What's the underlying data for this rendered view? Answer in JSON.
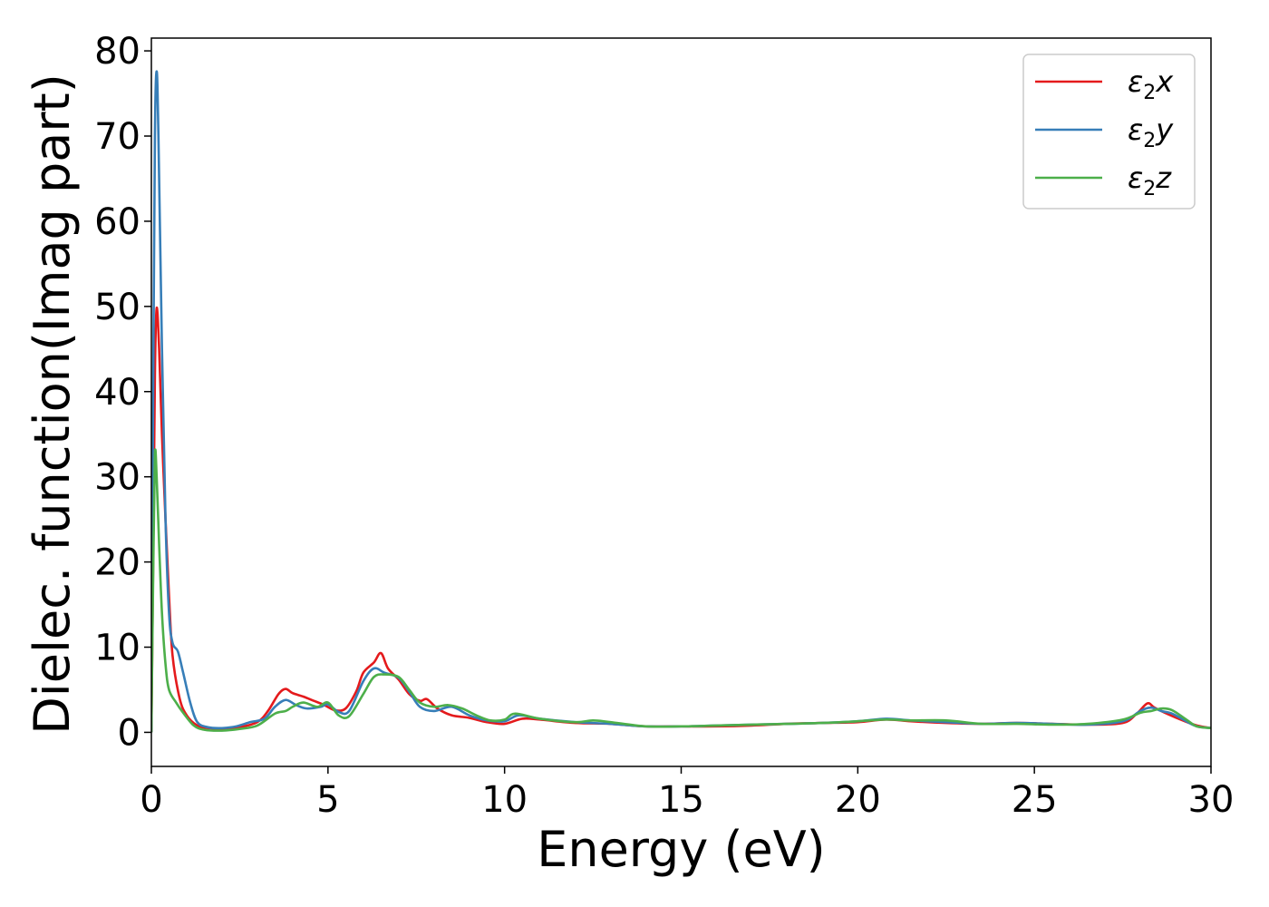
{
  "chart_data": {
    "type": "line",
    "title": "",
    "xlabel": "Energy (eV)",
    "ylabel": "Dielec. function(Imag part)",
    "xlim": [
      0,
      30
    ],
    "ylim": [
      -4,
      81.5
    ],
    "xticks": [
      0,
      5,
      10,
      15,
      20,
      25,
      30
    ],
    "yticks": [
      0,
      10,
      20,
      30,
      40,
      50,
      60,
      70,
      80
    ],
    "grid": false,
    "legend_position": "top-right",
    "series": [
      {
        "name": "ε2x",
        "legend_base": "ε",
        "legend_sub": "2",
        "legend_suffix": "x",
        "color": "#e41a1c",
        "points": [
          [
            0,
            0
          ],
          [
            0.05,
            20
          ],
          [
            0.1,
            42
          ],
          [
            0.15,
            49.8
          ],
          [
            0.22,
            45
          ],
          [
            0.3,
            35
          ],
          [
            0.4,
            25
          ],
          [
            0.5,
            16
          ],
          [
            0.6,
            9
          ],
          [
            0.8,
            4
          ],
          [
            1.0,
            2
          ],
          [
            1.3,
            0.8
          ],
          [
            1.6,
            0.5
          ],
          [
            2.0,
            0.4
          ],
          [
            2.5,
            0.6
          ],
          [
            3.0,
            1.2
          ],
          [
            3.3,
            2.5
          ],
          [
            3.6,
            4.5
          ],
          [
            3.8,
            5.1
          ],
          [
            4.0,
            4.6
          ],
          [
            4.3,
            4.2
          ],
          [
            4.6,
            3.7
          ],
          [
            4.9,
            3.2
          ],
          [
            5.2,
            2.6
          ],
          [
            5.5,
            2.8
          ],
          [
            5.8,
            4.8
          ],
          [
            6.0,
            7.0
          ],
          [
            6.3,
            8.2
          ],
          [
            6.5,
            9.3
          ],
          [
            6.7,
            7.5
          ],
          [
            7.0,
            6.2
          ],
          [
            7.3,
            4.5
          ],
          [
            7.6,
            3.7
          ],
          [
            7.8,
            3.9
          ],
          [
            8.1,
            2.8
          ],
          [
            8.5,
            2.0
          ],
          [
            9.0,
            1.7
          ],
          [
            9.5,
            1.2
          ],
          [
            10.0,
            1.0
          ],
          [
            10.5,
            1.6
          ],
          [
            11.0,
            1.5
          ],
          [
            12.0,
            1.1
          ],
          [
            13.0,
            1.0
          ],
          [
            14.0,
            0.7
          ],
          [
            15.0,
            0.7
          ],
          [
            16.0,
            0.7
          ],
          [
            17.0,
            0.8
          ],
          [
            18.0,
            1.0
          ],
          [
            19.0,
            1.1
          ],
          [
            20.0,
            1.2
          ],
          [
            20.8,
            1.5
          ],
          [
            21.5,
            1.3
          ],
          [
            22.5,
            1.1
          ],
          [
            23.5,
            1.0
          ],
          [
            24.5,
            1.1
          ],
          [
            25.5,
            1.0
          ],
          [
            26.5,
            0.9
          ],
          [
            27.5,
            1.1
          ],
          [
            27.9,
            2.2
          ],
          [
            28.2,
            3.4
          ],
          [
            28.4,
            2.9
          ],
          [
            28.8,
            2.1
          ],
          [
            29.2,
            1.4
          ],
          [
            29.6,
            0.8
          ],
          [
            30.0,
            0.5
          ]
        ]
      },
      {
        "name": "ε2y",
        "legend_base": "ε",
        "legend_sub": "2",
        "legend_suffix": "y",
        "color": "#377eb8",
        "points": [
          [
            0,
            0
          ],
          [
            0.05,
            40
          ],
          [
            0.1,
            70
          ],
          [
            0.15,
            77.6
          ],
          [
            0.2,
            70
          ],
          [
            0.3,
            45
          ],
          [
            0.4,
            25
          ],
          [
            0.5,
            14
          ],
          [
            0.6,
            10.5
          ],
          [
            0.75,
            9.5
          ],
          [
            0.9,
            7
          ],
          [
            1.1,
            3.5
          ],
          [
            1.3,
            1.2
          ],
          [
            1.6,
            0.6
          ],
          [
            2.0,
            0.5
          ],
          [
            2.4,
            0.7
          ],
          [
            2.8,
            1.2
          ],
          [
            3.2,
            1.6
          ],
          [
            3.5,
            3.0
          ],
          [
            3.8,
            3.8
          ],
          [
            4.1,
            3.2
          ],
          [
            4.4,
            2.8
          ],
          [
            4.8,
            3.0
          ],
          [
            5.0,
            3.3
          ],
          [
            5.3,
            2.4
          ],
          [
            5.6,
            2.5
          ],
          [
            6.0,
            6.0
          ],
          [
            6.3,
            7.5
          ],
          [
            6.6,
            7.0
          ],
          [
            7.0,
            6.4
          ],
          [
            7.3,
            4.8
          ],
          [
            7.6,
            3.0
          ],
          [
            8.0,
            2.5
          ],
          [
            8.5,
            3.0
          ],
          [
            9.0,
            2.0
          ],
          [
            9.5,
            1.4
          ],
          [
            10.0,
            1.3
          ],
          [
            10.4,
            2.0
          ],
          [
            11.0,
            1.6
          ],
          [
            12.0,
            1.2
          ],
          [
            13.0,
            1.0
          ],
          [
            14.0,
            0.7
          ],
          [
            15.0,
            0.7
          ],
          [
            16.0,
            0.8
          ],
          [
            17.0,
            0.9
          ],
          [
            18.0,
            1.0
          ],
          [
            19.0,
            1.1
          ],
          [
            20.0,
            1.3
          ],
          [
            20.8,
            1.6
          ],
          [
            21.5,
            1.4
          ],
          [
            22.5,
            1.2
          ],
          [
            23.5,
            1.0
          ],
          [
            24.5,
            1.1
          ],
          [
            25.5,
            1.0
          ],
          [
            26.5,
            0.9
          ],
          [
            27.5,
            1.3
          ],
          [
            28.0,
            2.5
          ],
          [
            28.3,
            2.9
          ],
          [
            28.6,
            2.5
          ],
          [
            28.9,
            2.2
          ],
          [
            29.3,
            1.3
          ],
          [
            29.6,
            0.7
          ],
          [
            30.0,
            0.5
          ]
        ]
      },
      {
        "name": "ε2z",
        "legend_base": "ε",
        "legend_sub": "2",
        "legend_suffix": "z",
        "color": "#4daf4a",
        "points": [
          [
            0,
            0
          ],
          [
            0.05,
            18
          ],
          [
            0.1,
            32.5
          ],
          [
            0.15,
            30
          ],
          [
            0.22,
            22
          ],
          [
            0.3,
            14
          ],
          [
            0.4,
            8
          ],
          [
            0.5,
            5
          ],
          [
            0.7,
            3.5
          ],
          [
            0.9,
            2.3
          ],
          [
            1.2,
            0.8
          ],
          [
            1.5,
            0.3
          ],
          [
            2.0,
            0.2
          ],
          [
            2.5,
            0.4
          ],
          [
            3.0,
            0.8
          ],
          [
            3.5,
            2.2
          ],
          [
            3.8,
            2.5
          ],
          [
            4.0,
            3.0
          ],
          [
            4.3,
            3.5
          ],
          [
            4.7,
            3.0
          ],
          [
            5.0,
            3.5
          ],
          [
            5.3,
            2.0
          ],
          [
            5.6,
            1.9
          ],
          [
            6.0,
            4.5
          ],
          [
            6.3,
            6.5
          ],
          [
            6.6,
            6.8
          ],
          [
            7.0,
            6.5
          ],
          [
            7.3,
            5.0
          ],
          [
            7.6,
            3.5
          ],
          [
            8.0,
            3.0
          ],
          [
            8.4,
            3.2
          ],
          [
            8.8,
            2.8
          ],
          [
            9.2,
            2.0
          ],
          [
            9.6,
            1.4
          ],
          [
            10.0,
            1.5
          ],
          [
            10.3,
            2.2
          ],
          [
            11.0,
            1.6
          ],
          [
            12.0,
            1.2
          ],
          [
            12.5,
            1.4
          ],
          [
            13.0,
            1.2
          ],
          [
            14.0,
            0.7
          ],
          [
            15.0,
            0.7
          ],
          [
            16.0,
            0.8
          ],
          [
            17.0,
            0.9
          ],
          [
            18.0,
            1.0
          ],
          [
            19.0,
            1.1
          ],
          [
            20.0,
            1.3
          ],
          [
            20.8,
            1.5
          ],
          [
            21.5,
            1.4
          ],
          [
            22.5,
            1.4
          ],
          [
            23.5,
            1.0
          ],
          [
            24.5,
            1.0
          ],
          [
            25.5,
            0.9
          ],
          [
            26.5,
            1.0
          ],
          [
            27.5,
            1.5
          ],
          [
            28.0,
            2.3
          ],
          [
            28.3,
            2.5
          ],
          [
            28.6,
            2.8
          ],
          [
            28.9,
            2.6
          ],
          [
            29.3,
            1.5
          ],
          [
            29.6,
            0.7
          ],
          [
            30.0,
            0.5
          ]
        ]
      }
    ]
  }
}
